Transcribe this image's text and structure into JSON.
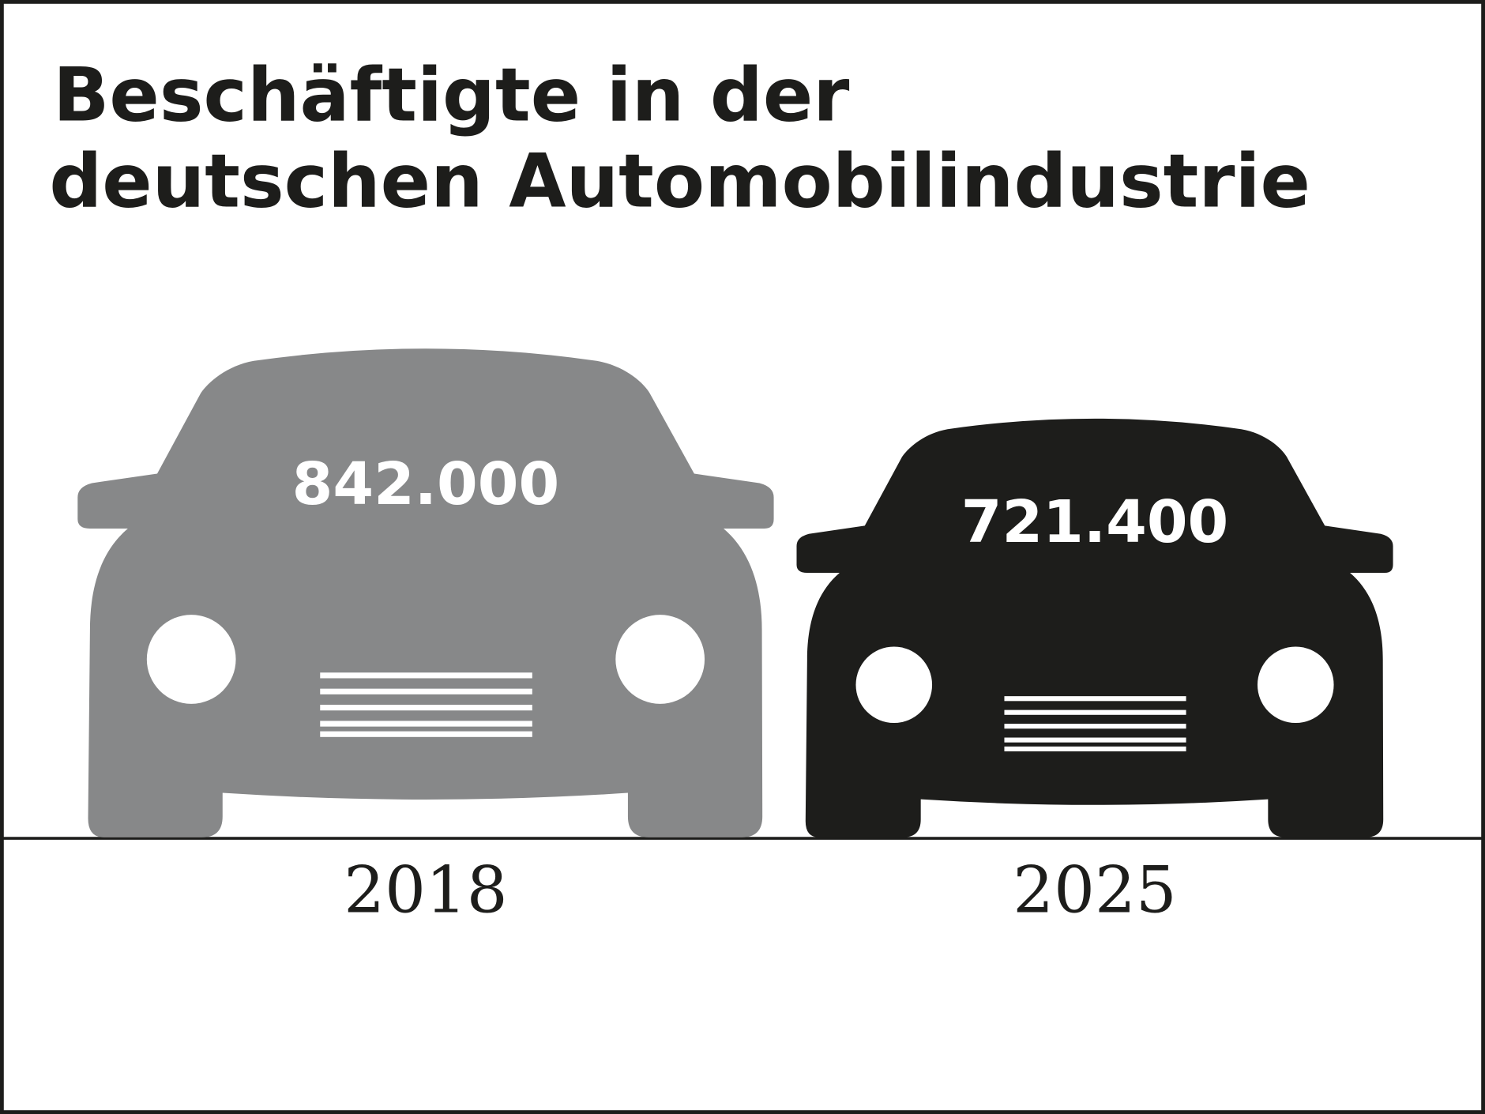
{
  "chart_data": {
    "type": "pictograph",
    "title": [
      "Beschäftigte in der",
      "deutschen Automobilindustrie"
    ],
    "categories": [
      "2018",
      "2025"
    ],
    "values": [
      842000,
      721400
    ],
    "value_labels": [
      "842.000",
      "721.400"
    ],
    "colors": [
      "#878889",
      "#1d1d1b"
    ]
  }
}
